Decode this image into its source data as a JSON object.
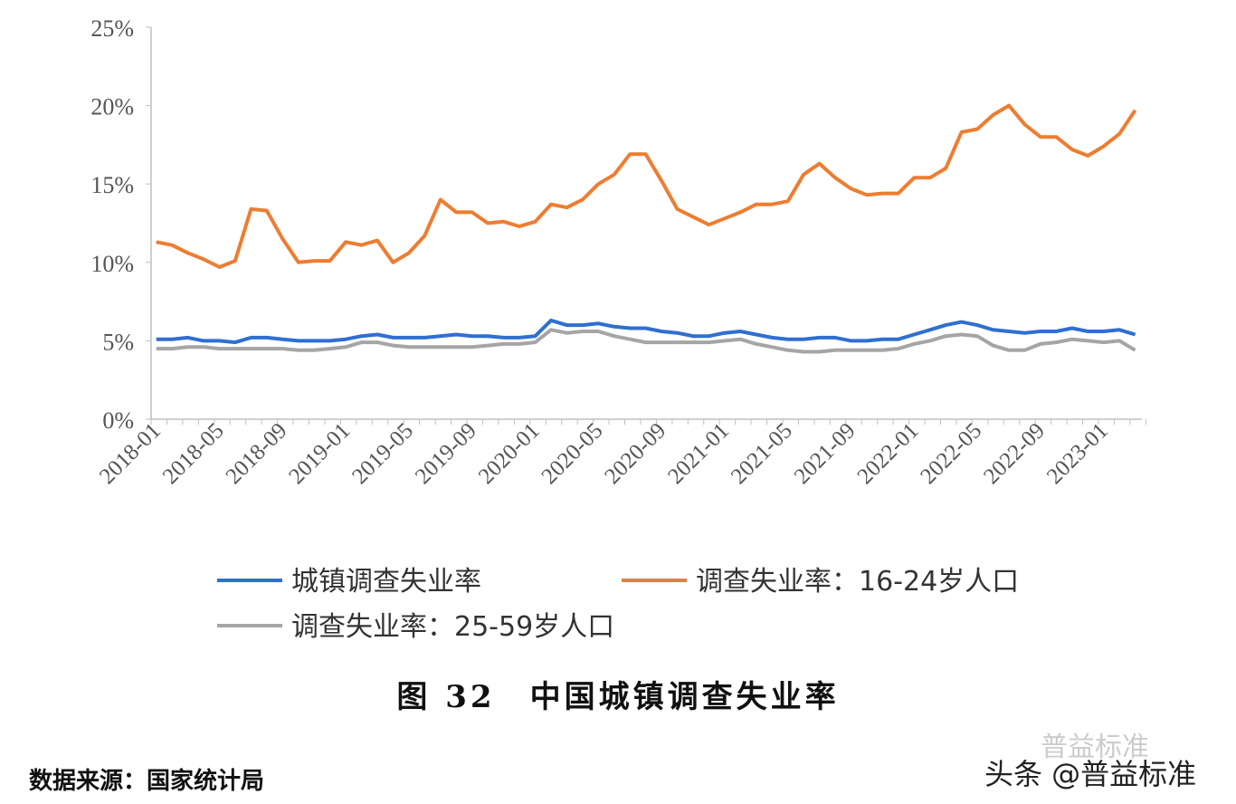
{
  "chart_data": {
    "type": "line",
    "title": "",
    "xlabel": "",
    "ylabel": "",
    "ylim": [
      0,
      25
    ],
    "y_ticks": [
      "0%",
      "5%",
      "10%",
      "15%",
      "20%",
      "25%"
    ],
    "x_start": "2018-01",
    "x_end": "2023-03",
    "x_tick_labels": [
      "2018-01",
      "2018-05",
      "2018-09",
      "2019-01",
      "2019-05",
      "2019-09",
      "2020-01",
      "2020-05",
      "2020-09",
      "2021-01",
      "2021-05",
      "2021-09",
      "2022-01",
      "2022-05",
      "2022-09",
      "2023-01"
    ],
    "grid": false,
    "legend_position": "bottom",
    "series": [
      {
        "name": "城镇调查失业率",
        "color": "#2F6FD0",
        "values": [
          5.1,
          5.1,
          5.2,
          5.0,
          5.0,
          4.9,
          5.2,
          5.2,
          5.1,
          5.0,
          5.0,
          5.0,
          5.1,
          5.3,
          5.4,
          5.2,
          5.2,
          5.2,
          5.3,
          5.4,
          5.3,
          5.3,
          5.2,
          5.2,
          5.3,
          6.3,
          6.0,
          6.0,
          6.1,
          5.9,
          5.8,
          5.8,
          5.6,
          5.5,
          5.3,
          5.3,
          5.5,
          5.6,
          5.4,
          5.2,
          5.1,
          5.1,
          5.2,
          5.2,
          5.0,
          5.0,
          5.1,
          5.1,
          5.4,
          5.7,
          6.0,
          6.2,
          6.0,
          5.7,
          5.6,
          5.5,
          5.6,
          5.6,
          5.8,
          5.6,
          5.6,
          5.7,
          5.4
        ]
      },
      {
        "name": "调查失业率：16-24岁人口",
        "color": "#ED7D31",
        "values": [
          11.3,
          11.1,
          10.6,
          10.2,
          9.7,
          10.1,
          13.4,
          13.3,
          11.5,
          10.0,
          10.1,
          10.1,
          11.3,
          11.1,
          11.4,
          10.0,
          10.6,
          11.7,
          14.0,
          13.2,
          13.2,
          12.5,
          12.6,
          12.3,
          12.6,
          13.7,
          13.5,
          14.0,
          15.0,
          15.6,
          16.9,
          16.9,
          15.2,
          13.4,
          12.9,
          12.4,
          12.8,
          13.2,
          13.7,
          13.7,
          13.9,
          15.6,
          16.3,
          15.4,
          14.7,
          14.3,
          14.4,
          14.4,
          15.4,
          15.4,
          16.0,
          18.3,
          18.5,
          19.4,
          20.0,
          18.8,
          18.0,
          18.0,
          17.2,
          16.8,
          17.4,
          18.2,
          19.7
        ]
      },
      {
        "name": "调查失业率：25-59岁人口",
        "color": "#A5A5A5",
        "values": [
          4.5,
          4.5,
          4.6,
          4.6,
          4.5,
          4.5,
          4.5,
          4.5,
          4.5,
          4.4,
          4.4,
          4.5,
          4.6,
          4.9,
          4.9,
          4.7,
          4.6,
          4.6,
          4.6,
          4.6,
          4.6,
          4.7,
          4.8,
          4.8,
          4.9,
          5.7,
          5.5,
          5.6,
          5.6,
          5.3,
          5.1,
          4.9,
          4.9,
          4.9,
          4.9,
          4.9,
          5.0,
          5.1,
          4.8,
          4.6,
          4.4,
          4.3,
          4.3,
          4.4,
          4.4,
          4.4,
          4.4,
          4.5,
          4.8,
          5.0,
          5.3,
          5.4,
          5.3,
          4.7,
          4.4,
          4.4,
          4.8,
          4.9,
          5.1,
          5.0,
          4.9,
          5.0,
          4.4
        ]
      }
    ]
  },
  "caption": "图 32　中国城镇调查失业率",
  "source": "数据来源：国家统计局",
  "watermark": "头条 @普益标准",
  "watermark_faint": "普益标准"
}
